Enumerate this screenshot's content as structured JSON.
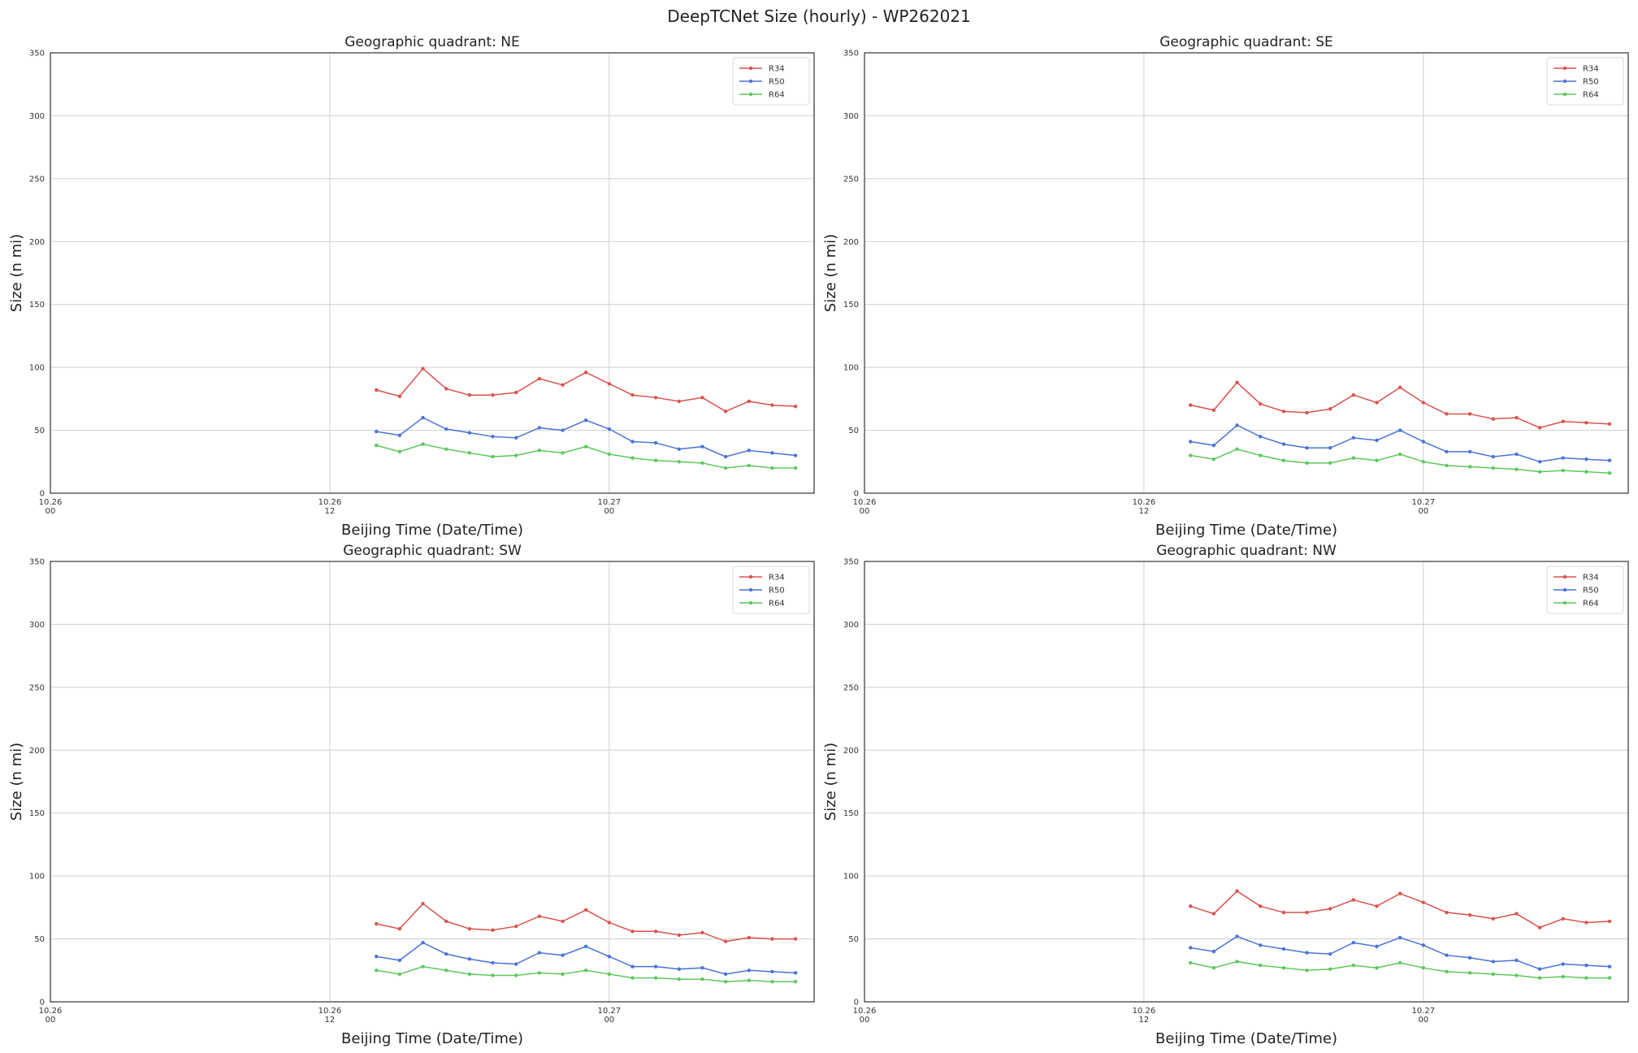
{
  "figure_title": "DeepTCNet Size (hourly) - WP262021",
  "colors": {
    "R34": "#d9534f",
    "R50": "#4a74d6",
    "R64": "#5cc85c",
    "grid": "#cfcfcf",
    "frame": "#333333"
  },
  "chart_data": [
    {
      "type": "line",
      "title": "Geographic quadrant: NE",
      "xlabel": "Beijing Time (Date/Time)",
      "ylabel": "Size (n mi)",
      "ylim": [
        0,
        350
      ],
      "yticks": [
        0,
        50,
        100,
        150,
        200,
        250,
        300,
        350
      ],
      "xlim_hours": [
        0,
        41
      ],
      "xticks": [
        {
          "hour": 0,
          "label": [
            "10.26",
            "00"
          ]
        },
        {
          "hour": 15,
          "label": [
            "10.26",
            "12"
          ]
        },
        {
          "hour": 30,
          "label": [
            "10.27",
            "00"
          ]
        }
      ],
      "grid": true,
      "legend": "top-right",
      "x_hours": [
        17.5,
        18.75,
        20,
        21.25,
        22.5,
        23.75,
        25,
        26.25,
        27.5,
        28.75,
        30,
        31.25,
        32.5,
        33.75,
        35,
        36.25,
        37.5,
        38.75,
        40
      ],
      "series": [
        {
          "name": "R34",
          "values": [
            82,
            77,
            99,
            83,
            78,
            78,
            80,
            91,
            86,
            96,
            87,
            78,
            76,
            73,
            76,
            65,
            73,
            70,
            69
          ]
        },
        {
          "name": "R50",
          "values": [
            49,
            46,
            60,
            51,
            48,
            45,
            44,
            52,
            50,
            58,
            51,
            41,
            40,
            35,
            37,
            29,
            34,
            32,
            30
          ]
        },
        {
          "name": "R64",
          "values": [
            38,
            33,
            39,
            35,
            32,
            29,
            30,
            34,
            32,
            37,
            31,
            28,
            26,
            25,
            24,
            20,
            22,
            20,
            20
          ]
        }
      ]
    },
    {
      "type": "line",
      "title": "Geographic quadrant: SE",
      "xlabel": "Beijing Time (Date/Time)",
      "ylabel": "Size (n mi)",
      "ylim": [
        0,
        350
      ],
      "yticks": [
        0,
        50,
        100,
        150,
        200,
        250,
        300,
        350
      ],
      "xlim_hours": [
        0,
        41
      ],
      "xticks": [
        {
          "hour": 0,
          "label": [
            "10.26",
            "00"
          ]
        },
        {
          "hour": 15,
          "label": [
            "10.26",
            "12"
          ]
        },
        {
          "hour": 30,
          "label": [
            "10.27",
            "00"
          ]
        }
      ],
      "grid": true,
      "legend": "top-right",
      "x_hours": [
        17.5,
        18.75,
        20,
        21.25,
        22.5,
        23.75,
        25,
        26.25,
        27.5,
        28.75,
        30,
        31.25,
        32.5,
        33.75,
        35,
        36.25,
        37.5,
        38.75,
        40
      ],
      "series": [
        {
          "name": "R34",
          "values": [
            70,
            66,
            88,
            71,
            65,
            64,
            67,
            78,
            72,
            84,
            72,
            63,
            63,
            59,
            60,
            52,
            57,
            56,
            55
          ]
        },
        {
          "name": "R50",
          "values": [
            41,
            38,
            54,
            45,
            39,
            36,
            36,
            44,
            42,
            50,
            41,
            33,
            33,
            29,
            31,
            25,
            28,
            27,
            26
          ]
        },
        {
          "name": "R64",
          "values": [
            30,
            27,
            35,
            30,
            26,
            24,
            24,
            28,
            26,
            31,
            25,
            22,
            21,
            20,
            19,
            17,
            18,
            17,
            16
          ]
        }
      ]
    },
    {
      "type": "line",
      "title": "Geographic quadrant: SW",
      "xlabel": "Beijing Time (Date/Time)",
      "ylabel": "Size (n mi)",
      "ylim": [
        0,
        350
      ],
      "yticks": [
        0,
        50,
        100,
        150,
        200,
        250,
        300,
        350
      ],
      "xlim_hours": [
        0,
        41
      ],
      "xticks": [
        {
          "hour": 0,
          "label": [
            "10.26",
            "00"
          ]
        },
        {
          "hour": 15,
          "label": [
            "10.26",
            "12"
          ]
        },
        {
          "hour": 30,
          "label": [
            "10.27",
            "00"
          ]
        }
      ],
      "grid": true,
      "legend": "top-right",
      "x_hours": [
        17.5,
        18.75,
        20,
        21.25,
        22.5,
        23.75,
        25,
        26.25,
        27.5,
        28.75,
        30,
        31.25,
        32.5,
        33.75,
        35,
        36.25,
        37.5,
        38.75,
        40
      ],
      "series": [
        {
          "name": "R34",
          "values": [
            62,
            58,
            78,
            64,
            58,
            57,
            60,
            68,
            64,
            73,
            63,
            56,
            56,
            53,
            55,
            48,
            51,
            50,
            50
          ]
        },
        {
          "name": "R50",
          "values": [
            36,
            33,
            47,
            38,
            34,
            31,
            30,
            39,
            37,
            44,
            36,
            28,
            28,
            26,
            27,
            22,
            25,
            24,
            23
          ]
        },
        {
          "name": "R64",
          "values": [
            25,
            22,
            28,
            25,
            22,
            21,
            21,
            23,
            22,
            25,
            22,
            19,
            19,
            18,
            18,
            16,
            17,
            16,
            16
          ]
        }
      ]
    },
    {
      "type": "line",
      "title": "Geographic quadrant: NW",
      "xlabel": "Beijing Time (Date/Time)",
      "ylabel": "Size (n mi)",
      "ylim": [
        0,
        350
      ],
      "yticks": [
        0,
        50,
        100,
        150,
        200,
        250,
        300,
        350
      ],
      "xlim_hours": [
        0,
        41
      ],
      "xticks": [
        {
          "hour": 0,
          "label": [
            "10.26",
            "00"
          ]
        },
        {
          "hour": 15,
          "label": [
            "10.26",
            "12"
          ]
        },
        {
          "hour": 30,
          "label": [
            "10.27",
            "00"
          ]
        }
      ],
      "grid": true,
      "legend": "top-right",
      "x_hours": [
        17.5,
        18.75,
        20,
        21.25,
        22.5,
        23.75,
        25,
        26.25,
        27.5,
        28.75,
        30,
        31.25,
        32.5,
        33.75,
        35,
        36.25,
        37.5,
        38.75,
        40
      ],
      "series": [
        {
          "name": "R34",
          "values": [
            76,
            70,
            88,
            76,
            71,
            71,
            74,
            81,
            76,
            86,
            79,
            71,
            69,
            66,
            70,
            59,
            66,
            63,
            64
          ]
        },
        {
          "name": "R50",
          "values": [
            43,
            40,
            52,
            45,
            42,
            39,
            38,
            47,
            44,
            51,
            45,
            37,
            35,
            32,
            33,
            26,
            30,
            29,
            28
          ]
        },
        {
          "name": "R64",
          "values": [
            31,
            27,
            32,
            29,
            27,
            25,
            26,
            29,
            27,
            31,
            27,
            24,
            23,
            22,
            21,
            19,
            20,
            19,
            19
          ]
        }
      ]
    }
  ]
}
